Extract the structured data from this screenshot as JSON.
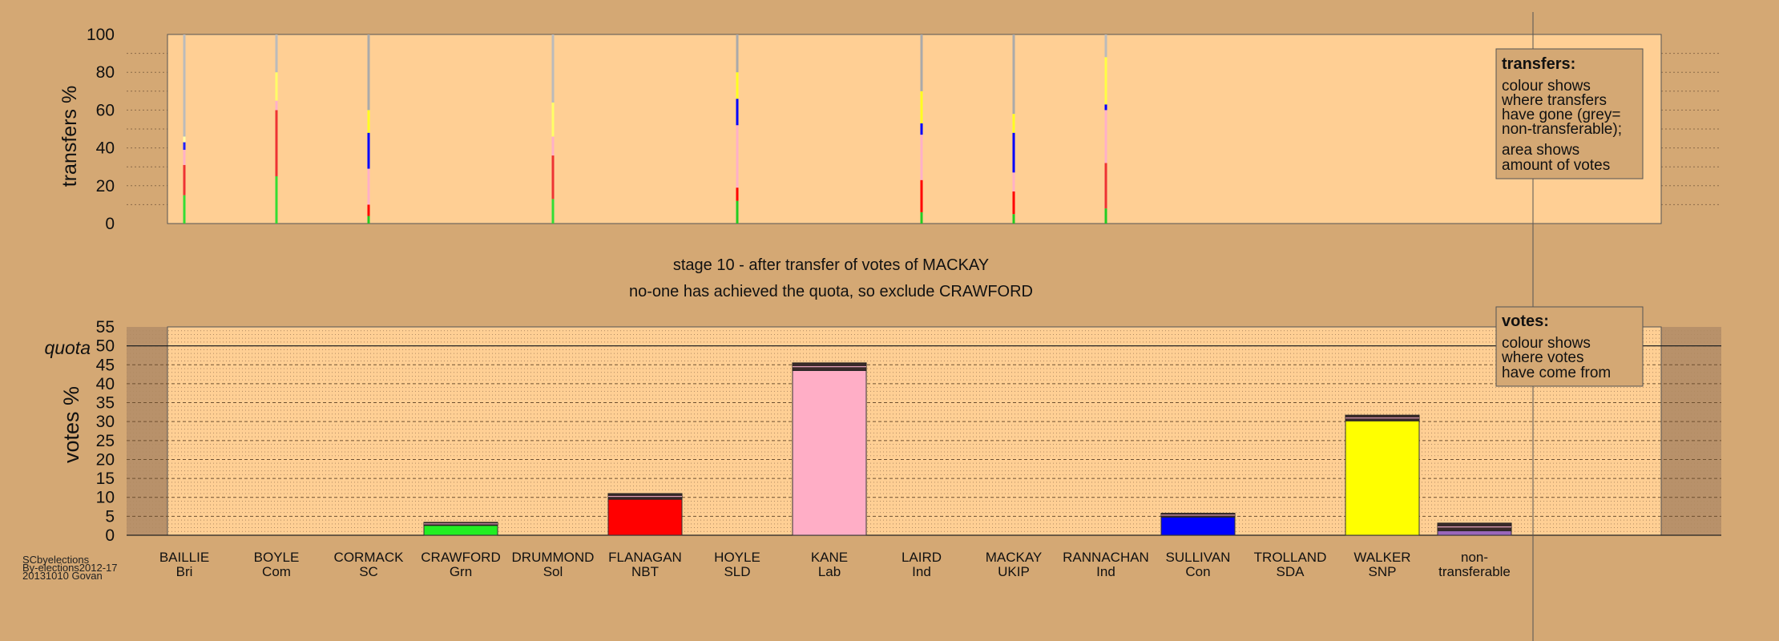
{
  "chart_data": [
    {
      "type": "bar",
      "name": "transfers",
      "ylabel": "transfers %",
      "ylim": [
        0,
        100
      ],
      "yticks": [
        0,
        20,
        40,
        60,
        80,
        100
      ],
      "grid": true,
      "legend": {
        "placement": "top-right",
        "title": "transfers:",
        "lines": [
          "colour shows",
          "where transfers",
          "have gone (grey=",
          "non-transferable);",
          "area shows",
          "amount of votes"
        ]
      },
      "columns": [
        {
          "candidate": "BAILLIE",
          "segments": [
            {
              "color": "#33dd33",
              "value": 15
            },
            {
              "color": "#ee3333",
              "value": 16
            },
            {
              "color": "#ffb0c8",
              "value": 8
            },
            {
              "color": "#2222ff",
              "value": 4
            },
            {
              "color": "#ffffaa",
              "value": 3
            },
            {
              "color": "#bbbbbb",
              "value": 54
            }
          ]
        },
        {
          "candidate": "BOYLE",
          "segments": [
            {
              "color": "#33dd33",
              "value": 25
            },
            {
              "color": "#ee3333",
              "value": 35
            },
            {
              "color": "#ffb0c8",
              "value": 5
            },
            {
              "color": "#ffff66",
              "value": 15
            },
            {
              "color": "#bbbbbb",
              "value": 20
            }
          ]
        },
        {
          "candidate": "CORMACK",
          "segments": [
            {
              "color": "#22cc22",
              "value": 4
            },
            {
              "color": "#ff0000",
              "value": 6
            },
            {
              "color": "#ffb0c8",
              "value": 19
            },
            {
              "color": "#0000ff",
              "value": 19
            },
            {
              "color": "#ffff22",
              "value": 12
            },
            {
              "color": "#aaaaaa",
              "value": 40
            }
          ]
        },
        {
          "candidate": "DRUMMOND",
          "segments": [
            {
              "color": "#33dd33",
              "value": 13
            },
            {
              "color": "#ee3333",
              "value": 23
            },
            {
              "color": "#ffb0c8",
              "value": 10
            },
            {
              "color": "#ffff66",
              "value": 18
            },
            {
              "color": "#bbbbbb",
              "value": 36
            }
          ]
        },
        {
          "candidate": "HOYLE",
          "segments": [
            {
              "color": "#22cc22",
              "value": 12
            },
            {
              "color": "#ff0000",
              "value": 7
            },
            {
              "color": "#ffb0c8",
              "value": 33
            },
            {
              "color": "#0000ff",
              "value": 14
            },
            {
              "color": "#ffff22",
              "value": 14
            },
            {
              "color": "#aaaaaa",
              "value": 20
            }
          ]
        },
        {
          "candidate": "LAIRD",
          "segments": [
            {
              "color": "#22cc22",
              "value": 6
            },
            {
              "color": "#ff0000",
              "value": 17
            },
            {
              "color": "#ffb0c8",
              "value": 24
            },
            {
              "color": "#0000ff",
              "value": 6
            },
            {
              "color": "#ffff22",
              "value": 17
            },
            {
              "color": "#aaaaaa",
              "value": 30
            }
          ]
        },
        {
          "candidate": "MACKAY",
          "segments": [
            {
              "color": "#22cc22",
              "value": 5
            },
            {
              "color": "#ff0000",
              "value": 12
            },
            {
              "color": "#ffb0c8",
              "value": 10
            },
            {
              "color": "#0000ff",
              "value": 21
            },
            {
              "color": "#ffff22",
              "value": 10
            },
            {
              "color": "#aaaaaa",
              "value": 42
            }
          ]
        },
        {
          "candidate": "RANNACHAN",
          "segments": [
            {
              "color": "#22cc22",
              "value": 8
            },
            {
              "color": "#ee3333",
              "value": 24
            },
            {
              "color": "#ffb0c8",
              "value": 28
            },
            {
              "color": "#0000ff",
              "value": 3
            },
            {
              "color": "#ffff44",
              "value": 25
            },
            {
              "color": "#bbbbbb",
              "value": 12
            }
          ]
        }
      ]
    },
    {
      "type": "bar",
      "name": "votes",
      "ylabel": "votes %",
      "ylim": [
        0,
        55
      ],
      "yticks": [
        0,
        5,
        10,
        15,
        20,
        25,
        30,
        35,
        40,
        45,
        50,
        55
      ],
      "quota": {
        "label": "quota",
        "value": 50
      },
      "grid": true,
      "legend": {
        "placement": "top-right",
        "title": "votes:",
        "lines": [
          "colour shows",
          "where votes",
          "have come from"
        ]
      },
      "categories": [
        {
          "name": "BAILLIE",
          "party": "Bri",
          "value": 0,
          "color": "#cccccc"
        },
        {
          "name": "BOYLE",
          "party": "Com",
          "value": 0,
          "color": "#cccccc"
        },
        {
          "name": "CORMACK",
          "party": "SC",
          "value": 0,
          "color": "#cccccc"
        },
        {
          "name": "CRAWFORD",
          "party": "Grn",
          "value": 2.6,
          "color": "#22ee22",
          "transfer": 0.8
        },
        {
          "name": "DRUMMOND",
          "party": "Sol",
          "value": 0,
          "color": "#cccccc"
        },
        {
          "name": "FLANAGAN",
          "party": "NBT",
          "value": 9.5,
          "color": "#ff0000",
          "transfer": 1.5
        },
        {
          "name": "HOYLE",
          "party": "SLD",
          "value": 0,
          "color": "#cccccc"
        },
        {
          "name": "KANE",
          "party": "Lab",
          "value": 43.5,
          "color": "#ffaec6",
          "transfer": 2.0
        },
        {
          "name": "LAIRD",
          "party": "Ind",
          "value": 0,
          "color": "#cccccc"
        },
        {
          "name": "MACKAY",
          "party": "UKIP",
          "value": 0,
          "color": "#cccccc"
        },
        {
          "name": "RANNACHAN",
          "party": "Ind",
          "value": 0,
          "color": "#cccccc"
        },
        {
          "name": "SULLIVAN",
          "party": "Con",
          "value": 4.8,
          "color": "#0000ff",
          "transfer": 1.0
        },
        {
          "name": "TROLLAND",
          "party": "SDA",
          "value": 0,
          "color": "#cccccc"
        },
        {
          "name": "WALKER",
          "party": "SNP",
          "value": 30.2,
          "color": "#ffff00",
          "transfer": 1.5
        },
        {
          "name": "non-",
          "party": "transferable",
          "value": 1.2,
          "color": "#9966bb",
          "transfer": 2.0
        }
      ]
    }
  ],
  "captions": {
    "stage": "stage 10 - after transfer of votes of MACKAY",
    "outcome": "no-one has achieved the quota, so exclude CRAWFORD"
  },
  "footer": [
    "SCbyelections",
    "By-elections2012-17",
    "20131010 Govan"
  ]
}
